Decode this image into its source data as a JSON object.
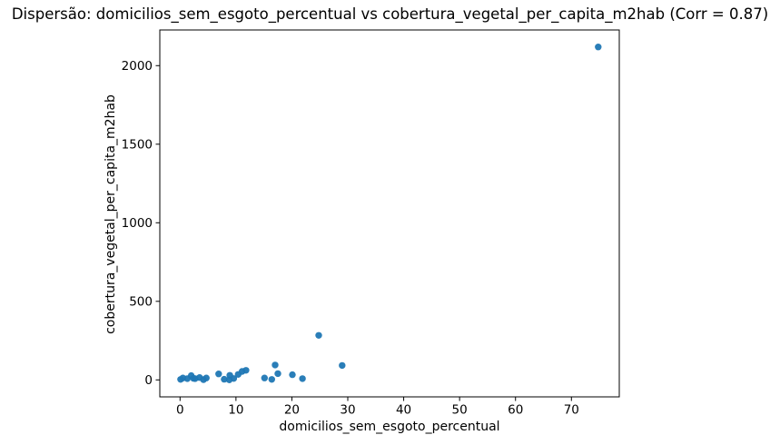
{
  "chart_data": {
    "type": "scatter",
    "title": "Dispersão: domicilios_sem_esgoto_percentual vs cobertura_vegetal_per_capita_m2hab (Corr = 0.87)",
    "xlabel": "domicilios_sem_esgoto_percentual",
    "ylabel": "cobertura_vegetal_per_capita_m2hab",
    "correlation": 0.87,
    "x_ticks": [
      0,
      10,
      20,
      30,
      40,
      50,
      60,
      70
    ],
    "y_ticks": [
      0,
      500,
      1000,
      1500,
      2000
    ],
    "xlim": [
      -3.62,
      78.56
    ],
    "ylim": [
      -108,
      2227
    ],
    "grid": false,
    "marker_color": "#1f77b4",
    "axis_color": "#000000",
    "background_color": "#ffffff",
    "points": [
      [
        0.1,
        3
      ],
      [
        0.5,
        12
      ],
      [
        1.3,
        8
      ],
      [
        2.0,
        27
      ],
      [
        2.4,
        10
      ],
      [
        2.7,
        8
      ],
      [
        3.5,
        15
      ],
      [
        4.2,
        2
      ],
      [
        4.7,
        12
      ],
      [
        6.9,
        38
      ],
      [
        7.9,
        4
      ],
      [
        8.8,
        0
      ],
      [
        8.9,
        29
      ],
      [
        9.6,
        9
      ],
      [
        10.4,
        35
      ],
      [
        11.1,
        54
      ],
      [
        11.8,
        61
      ],
      [
        15.1,
        12
      ],
      [
        16.4,
        3
      ],
      [
        17.0,
        95
      ],
      [
        17.5,
        40
      ],
      [
        20.1,
        33
      ],
      [
        21.9,
        8
      ],
      [
        24.8,
        283
      ],
      [
        29.0,
        92
      ],
      [
        74.8,
        2119
      ]
    ]
  }
}
